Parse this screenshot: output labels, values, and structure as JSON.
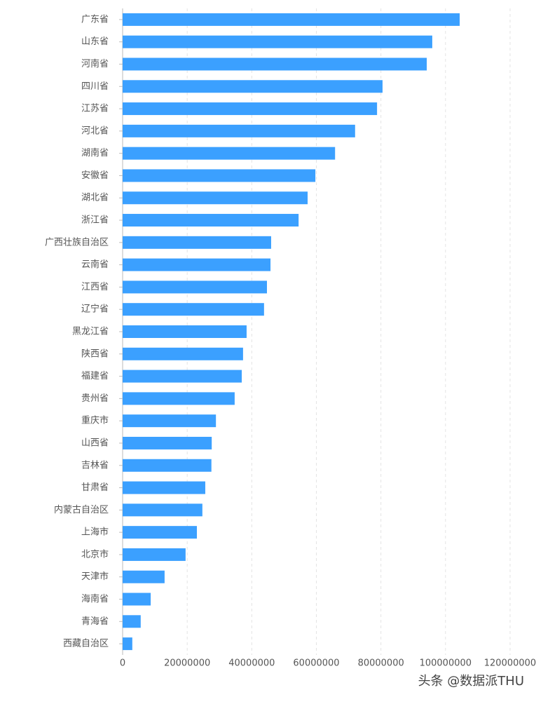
{
  "chart_data": {
    "type": "barh",
    "categories": [
      "广东省",
      "山东省",
      "河南省",
      "四川省",
      "江苏省",
      "河北省",
      "湖南省",
      "安徽省",
      "湖北省",
      "浙江省",
      "广西壮族自治区",
      "云南省",
      "江西省",
      "辽宁省",
      "黑龙江省",
      "陕西省",
      "福建省",
      "贵州省",
      "重庆市",
      "山西省",
      "吉林省",
      "甘肃省",
      "内蒙古自治区",
      "上海市",
      "北京市",
      "天津市",
      "海南省",
      "青海省",
      "西藏自治区"
    ],
    "values": [
      104400000,
      95900000,
      94200000,
      80500000,
      78800000,
      72000000,
      65800000,
      59700000,
      57300000,
      54500000,
      46000000,
      45800000,
      44700000,
      43800000,
      38400000,
      37300000,
      36900000,
      34700000,
      28900000,
      27600000,
      27500000,
      25600000,
      24700000,
      23000000,
      19500000,
      13000000,
      8700000,
      5600000,
      3000000
    ],
    "color": "#3ba0ff",
    "xlim": [
      0,
      120000000
    ],
    "xticks": [
      0,
      20000000,
      40000000,
      60000000,
      80000000,
      100000000,
      120000000
    ],
    "grid": true
  },
  "watermark": "头条 @数据派THU"
}
